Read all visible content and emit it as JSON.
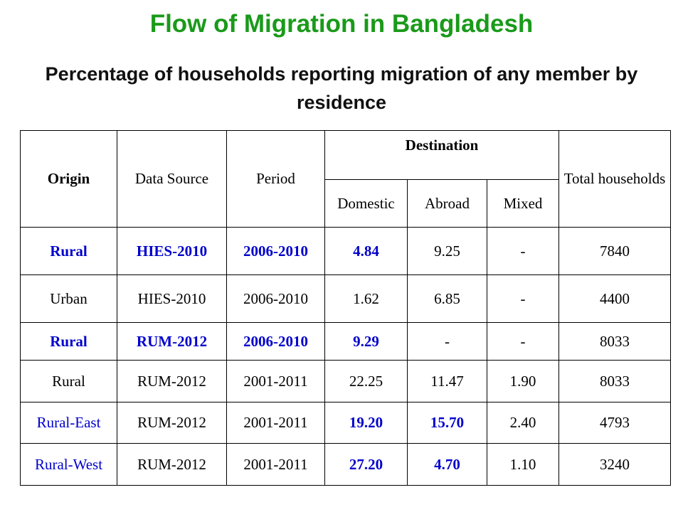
{
  "title": "Flow of Migration in Bangladesh",
  "subtitle": "Percentage of households reporting migration of any member by residence",
  "headers": {
    "origin": "Origin",
    "data_source": "Data Source",
    "period": "Period",
    "destination": "Destination",
    "domestic": "Domestic",
    "abroad": "Abroad",
    "mixed": "Mixed",
    "total_households": "Total households"
  },
  "rows": [
    {
      "origin": "Rural",
      "source": "HIES-2010",
      "period": "2006-2010",
      "domestic": "4.84",
      "abroad": "9.25",
      "mixed": "-",
      "total": "7840"
    },
    {
      "origin": "Urban",
      "source": "HIES-2010",
      "period": "2006-2010",
      "domestic": "1.62",
      "abroad": "6.85",
      "mixed": "-",
      "total": "4400"
    },
    {
      "origin": "Rural",
      "source": "RUM-2012",
      "period": "2006-2010",
      "domestic": "9.29",
      "abroad": "-",
      "mixed": "-",
      "total": "8033"
    },
    {
      "origin": "Rural",
      "source": "RUM-2012",
      "period": "2001-2011",
      "domestic": "22.25",
      "abroad": "11.47",
      "mixed": "1.90",
      "total": "8033"
    },
    {
      "origin": "Rural-East",
      "source": "RUM-2012",
      "period": "2001-2011",
      "domestic": "19.20",
      "abroad": "15.70",
      "mixed": "2.40",
      "total": "4793"
    },
    {
      "origin": "Rural-West",
      "source": "RUM-2012",
      "period": "2001-2011",
      "domestic": "27.20",
      "abroad": "4.70",
      "mixed": "1.10",
      "total": "3240"
    }
  ],
  "colors": {
    "title": "#1a9a1a",
    "highlight": "#0000cc"
  }
}
